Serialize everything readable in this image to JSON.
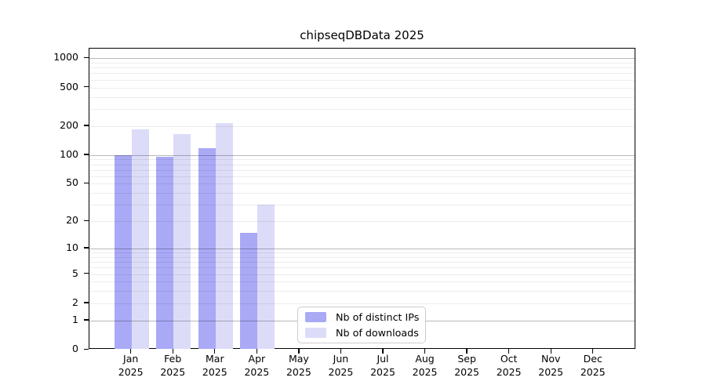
{
  "title": "chipseqDBData 2025",
  "chart_data": {
    "type": "bar",
    "title": "chipseqDBData 2025",
    "scale": "symlog (position = B - K*ln(1+value))",
    "categories": [
      "Jan",
      "Feb",
      "Mar",
      "Apr",
      "May",
      "Jun",
      "Jul",
      "Aug",
      "Sep",
      "Oct",
      "Nov",
      "Dec"
    ],
    "year_label": "2025",
    "series": [
      {
        "name": "Nb of distinct IPs",
        "color": "#a9a9f6",
        "values": [
          100,
          96,
          118,
          15,
          0,
          0,
          0,
          0,
          0,
          0,
          0,
          0
        ]
      },
      {
        "name": "Nb of downloads",
        "color": "#dcdcf9",
        "values": [
          183,
          165,
          215,
          30,
          0,
          0,
          0,
          0,
          0,
          0,
          0,
          0
        ]
      }
    ],
    "y_tick_labels": [
      "0",
      "1",
      "2",
      "5",
      "10",
      "20",
      "50",
      "100",
      "200",
      "500",
      "1000"
    ],
    "y_tick_values": [
      0,
      1,
      2,
      5,
      10,
      20,
      50,
      100,
      200,
      500,
      1000
    ],
    "y_major_gridlines": [
      1,
      10,
      100,
      1000
    ],
    "ylim": [
      0,
      1250
    ],
    "grid": "horizontal major+minor gridlines drawn over bars",
    "legend_position": "bottom-center",
    "colors": {
      "axis": "#000000",
      "major_grid": "#b8b8b8",
      "minor_grid": "#ebebeb",
      "legend_border": "#cccccc"
    }
  }
}
